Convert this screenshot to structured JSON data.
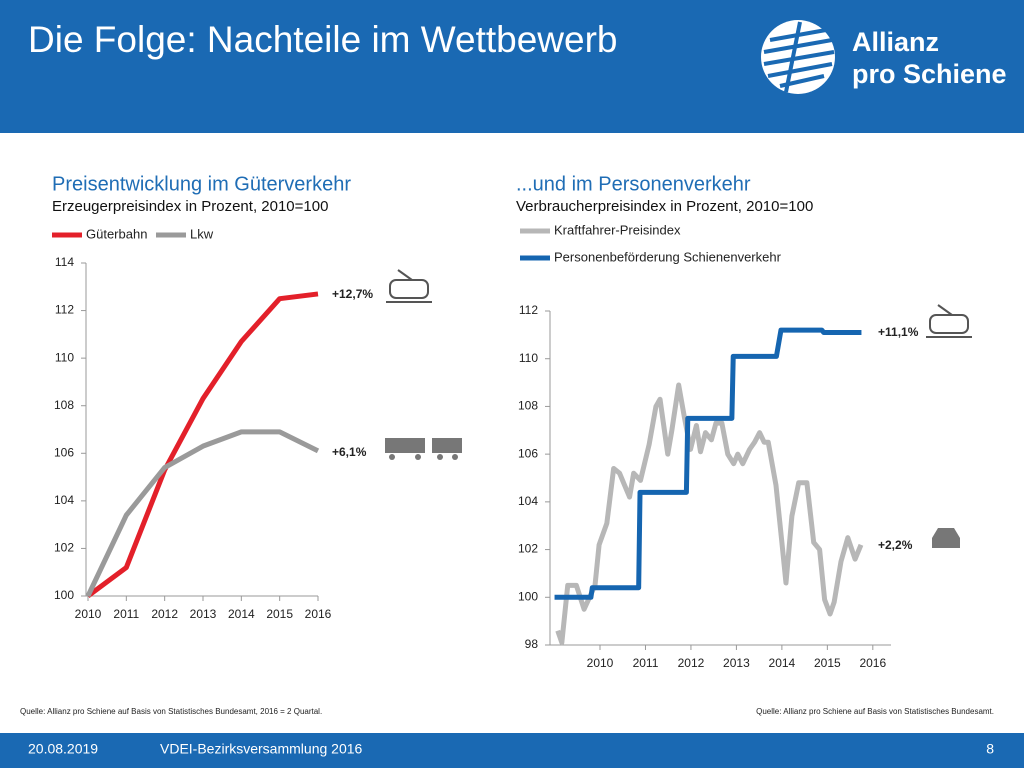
{
  "header": {
    "title": "Die Folge: Nachteile im Wettbewerb",
    "logo_line1": "Allianz",
    "logo_line2": "pro Schiene"
  },
  "chart_data": [
    {
      "type": "line",
      "title": "Preisentwicklung im Güterverkehr",
      "subtitle": "Erzeugerpreisindex in Prozent, 2010=100",
      "x": [
        2010,
        2011,
        2012,
        2013,
        2014,
        2015,
        2016
      ],
      "xlim": [
        2010,
        2016
      ],
      "xticks": [
        2010,
        2011,
        2012,
        2013,
        2014,
        2015,
        2016
      ],
      "ylim": [
        100,
        114
      ],
      "yticks": [
        100,
        102,
        104,
        106,
        108,
        110,
        112,
        114
      ],
      "series": [
        {
          "name": "Güterbahn",
          "color": "#e3202a",
          "values": [
            100,
            101.2,
            105.3,
            108.3,
            110.7,
            112.5,
            112.7
          ]
        },
        {
          "name": "Lkw",
          "color": "#9a9a9a",
          "values": [
            100,
            103.4,
            105.4,
            106.3,
            106.9,
            106.9,
            106.1
          ]
        }
      ],
      "annotations": [
        "+12,7%",
        "+6,1%"
      ],
      "source": "Quelle: Allianz pro Schiene auf Basis von Statistisches Bundesamt, 2016 = 2 Quartal."
    },
    {
      "type": "line",
      "title": "...und im Personenverkehr",
      "subtitle": "Verbraucherpreisindex in Prozent, 2010=100",
      "xlim": [
        2008.9,
        2016.4
      ],
      "xticks": [
        2010,
        2011,
        2012,
        2013,
        2014,
        2015,
        2016
      ],
      "ylim": [
        98,
        112
      ],
      "yticks": [
        98,
        100,
        102,
        104,
        106,
        108,
        110,
        112
      ],
      "series": [
        {
          "name": "Kraftfahrer-Preisindex",
          "color": "#b7b7b7",
          "x": [
            2009.07,
            2009.16,
            2009.29,
            2009.48,
            2009.65,
            2009.89,
            2009.98,
            2010.15,
            2010.3,
            2010.43,
            2010.54,
            2010.65,
            2010.74,
            2010.89,
            2011.08,
            2011.23,
            2011.32,
            2011.49,
            2011.58,
            2011.73,
            2011.86,
            2011.99,
            2012.12,
            2012.21,
            2012.32,
            2012.45,
            2012.55,
            2012.68,
            2012.81,
            2012.94,
            2013.03,
            2013.14,
            2013.29,
            2013.4,
            2013.51,
            2013.61,
            2013.7,
            2013.87,
            2014.0,
            2014.09,
            2014.22,
            2014.37,
            2014.55,
            2014.7,
            2014.83,
            2014.94,
            2015.06,
            2015.15,
            2015.3,
            2015.45,
            2015.61,
            2015.74
          ],
          "values": [
            98.6,
            98.1,
            100.5,
            100.5,
            99.5,
            100.5,
            102.2,
            103.1,
            105.4,
            105.2,
            104.7,
            104.2,
            105.2,
            104.9,
            106.4,
            108.0,
            108.3,
            106.0,
            107.0,
            108.9,
            107.5,
            106.2,
            107.2,
            106.1,
            106.9,
            106.6,
            107.3,
            107.3,
            106.0,
            105.6,
            106.0,
            105.6,
            106.2,
            106.5,
            106.9,
            106.5,
            106.5,
            104.7,
            102.3,
            100.6,
            103.4,
            104.8,
            104.8,
            102.3,
            102.0,
            99.9,
            99.3,
            99.8,
            101.5,
            102.5,
            101.6,
            102.2
          ]
        },
        {
          "name": "Personenbeförderung Schienenverkehr",
          "color": "#1565b0",
          "x": [
            2009.0,
            2009.8,
            2009.83,
            2010.85,
            2010.88,
            2011.9,
            2011.93,
            2012.9,
            2012.93,
            2013.88,
            2013.98,
            2014.88,
            2014.92,
            2015.75
          ],
          "values": [
            100,
            100,
            100.4,
            100.4,
            104.4,
            104.4,
            107.5,
            107.5,
            110.1,
            110.1,
            111.2,
            111.2,
            111.1,
            111.1
          ]
        }
      ],
      "annotations": [
        "+11,1%",
        "+2,2%"
      ],
      "source": "Quelle: Allianz pro Schiene auf Basis von Statistisches Bundesamt."
    }
  ],
  "footer": {
    "date": "20.08.2019",
    "event": "VDEI-Bezirksversammlung 2016",
    "page": "8"
  }
}
